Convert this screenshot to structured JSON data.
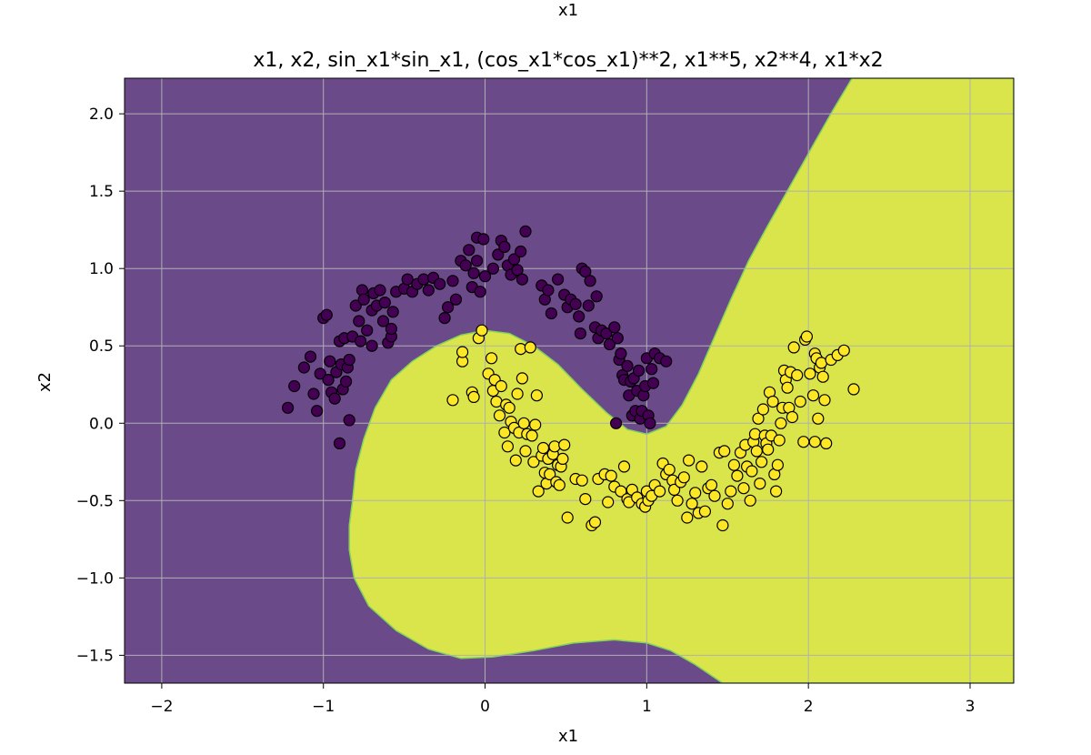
{
  "figure_suptitle": "x1",
  "chart_data": {
    "type": "scatter",
    "title": "x1, x2, sin_x1*sin_x1, (cos_x1*cos_x1)**2, x1**5, x2**4, x1*x2",
    "xlabel": "x1",
    "ylabel": "x2",
    "xlim": [
      -2.23,
      3.27
    ],
    "ylim": [
      -1.68,
      2.23
    ],
    "xticks": [
      -2,
      -1,
      0,
      1,
      2,
      3
    ],
    "yticks": [
      -1.5,
      -1.0,
      -0.5,
      0.0,
      0.5,
      1.0,
      1.5,
      2.0
    ],
    "xtick_labels": [
      "−2",
      "−1",
      "0",
      "1",
      "2",
      "3"
    ],
    "ytick_labels": [
      "−1.5",
      "−1.0",
      "−0.5",
      "0.0",
      "0.5",
      "1.0",
      "1.5",
      "2.0"
    ],
    "grid": true,
    "colors": {
      "class0": "#440154",
      "class1": "#fde725",
      "region0": "#6b4a8a",
      "region1": "#d9e54a",
      "grid": "#b0b0b0",
      "edge": "#000000"
    },
    "decision_regions": {
      "class1_boundary": [
        [
          -0.82,
          -0.5
        ],
        [
          -0.8,
          -0.3
        ],
        [
          -0.75,
          -0.1
        ],
        [
          -0.68,
          0.1
        ],
        [
          -0.58,
          0.28
        ],
        [
          -0.45,
          0.4
        ],
        [
          -0.3,
          0.5
        ],
        [
          -0.15,
          0.57
        ],
        [
          0.0,
          0.6
        ],
        [
          0.15,
          0.58
        ],
        [
          0.3,
          0.5
        ],
        [
          0.45,
          0.38
        ],
        [
          0.6,
          0.22
        ],
        [
          0.75,
          0.07
        ],
        [
          0.88,
          -0.04
        ],
        [
          1.0,
          -0.07
        ],
        [
          1.12,
          -0.02
        ],
        [
          1.22,
          0.12
        ],
        [
          1.32,
          0.32
        ],
        [
          1.42,
          0.56
        ],
        [
          1.52,
          0.8
        ],
        [
          1.63,
          1.05
        ],
        [
          1.75,
          1.28
        ],
        [
          1.88,
          1.52
        ],
        [
          2.02,
          1.78
        ],
        [
          2.15,
          2.02
        ],
        [
          2.27,
          2.23
        ],
        [
          3.27,
          2.23
        ],
        [
          3.27,
          -1.68
        ],
        [
          1.47,
          -1.68
        ],
        [
          1.3,
          -1.56
        ],
        [
          1.15,
          -1.47
        ],
        [
          1.0,
          -1.42
        ],
        [
          0.8,
          -1.4
        ],
        [
          0.55,
          -1.42
        ],
        [
          0.3,
          -1.47
        ],
        [
          0.05,
          -1.51
        ],
        [
          -0.15,
          -1.52
        ],
        [
          -0.35,
          -1.46
        ],
        [
          -0.55,
          -1.34
        ],
        [
          -0.72,
          -1.18
        ],
        [
          -0.81,
          -1.0
        ],
        [
          -0.84,
          -0.82
        ],
        [
          -0.84,
          -0.66
        ]
      ]
    },
    "series": [
      {
        "class": 0,
        "points": [
          [
            -1.22,
            0.1
          ],
          [
            -1.18,
            0.24
          ],
          [
            -1.12,
            0.36
          ],
          [
            -1.08,
            0.43
          ],
          [
            -1.06,
            0.19
          ],
          [
            -1.04,
            0.08
          ],
          [
            -1.02,
            0.32
          ],
          [
            -1.0,
            0.68
          ],
          [
            -0.98,
            0.7
          ],
          [
            -0.97,
            0.28
          ],
          [
            -0.96,
            0.4
          ],
          [
            -0.95,
            0.2
          ],
          [
            -0.93,
            0.16
          ],
          [
            -0.92,
            0.33
          ],
          [
            -0.9,
            0.53
          ],
          [
            -0.9,
            -0.13
          ],
          [
            -0.89,
            0.38
          ],
          [
            -0.88,
            0.22
          ],
          [
            -0.87,
            0.55
          ],
          [
            -0.86,
            0.27
          ],
          [
            -0.85,
            0.36
          ],
          [
            -0.84,
            0.41
          ],
          [
            -0.84,
            0.02
          ],
          [
            -0.82,
            0.56
          ],
          [
            -0.8,
            0.76
          ],
          [
            -0.78,
            0.66
          ],
          [
            -0.77,
            0.53
          ],
          [
            -0.76,
            0.86
          ],
          [
            -0.75,
            0.8
          ],
          [
            -0.73,
            0.6
          ],
          [
            -0.7,
            0.73
          ],
          [
            -0.7,
            0.5
          ],
          [
            -0.69,
            0.84
          ],
          [
            -0.67,
            0.76
          ],
          [
            -0.65,
            0.86
          ],
          [
            -0.63,
            0.66
          ],
          [
            -0.62,
            0.78
          ],
          [
            -0.6,
            0.52
          ],
          [
            -0.58,
            0.56
          ],
          [
            -0.58,
            0.61
          ],
          [
            -0.57,
            0.72
          ],
          [
            -0.55,
            0.85
          ],
          [
            -0.5,
            0.87
          ],
          [
            -0.48,
            0.93
          ],
          [
            -0.45,
            0.85
          ],
          [
            -0.42,
            0.9
          ],
          [
            -0.38,
            0.93
          ],
          [
            -0.35,
            0.86
          ],
          [
            -0.32,
            0.94
          ],
          [
            -0.28,
            0.9
          ],
          [
            -0.25,
            0.68
          ],
          [
            -0.23,
            0.75
          ],
          [
            -0.2,
            0.92
          ],
          [
            -0.18,
            0.8
          ],
          [
            -0.15,
            1.05
          ],
          [
            -0.12,
            1.02
          ],
          [
            -0.1,
            1.12
          ],
          [
            -0.08,
            0.88
          ],
          [
            -0.07,
            0.97
          ],
          [
            -0.05,
            1.2
          ],
          [
            -0.05,
            1.05
          ],
          [
            -0.03,
            0.85
          ],
          [
            -0.01,
            1.19
          ],
          [
            0.0,
            0.95
          ],
          [
            0.05,
            1.0
          ],
          [
            0.08,
            1.09
          ],
          [
            0.1,
            1.18
          ],
          [
            0.12,
            1.14
          ],
          [
            0.14,
            1.02
          ],
          [
            0.16,
            0.96
          ],
          [
            0.18,
            1.06
          ],
          [
            0.2,
            0.99
          ],
          [
            0.22,
            1.11
          ],
          [
            0.23,
            0.93
          ],
          [
            0.25,
            1.24
          ],
          [
            0.35,
            0.89
          ],
          [
            0.37,
            0.8
          ],
          [
            0.39,
            0.86
          ],
          [
            0.41,
            0.71
          ],
          [
            0.45,
            0.93
          ],
          [
            0.49,
            0.83
          ],
          [
            0.51,
            0.75
          ],
          [
            0.53,
            0.8
          ],
          [
            0.56,
            0.77
          ],
          [
            0.58,
            0.69
          ],
          [
            0.59,
            0.58
          ],
          [
            0.6,
            1.0
          ],
          [
            0.62,
            0.98
          ],
          [
            0.64,
            0.76
          ],
          [
            0.65,
            0.92
          ],
          [
            0.68,
            0.62
          ],
          [
            0.69,
            0.82
          ],
          [
            0.7,
            0.55
          ],
          [
            0.72,
            0.6
          ],
          [
            0.75,
            0.58
          ],
          [
            0.77,
            0.51
          ],
          [
            0.8,
            0.62
          ],
          [
            0.82,
            0.55
          ],
          [
            0.83,
            0.41
          ],
          [
            0.84,
            0.45
          ],
          [
            0.85,
            0.31
          ],
          [
            0.86,
            0.28
          ],
          [
            0.88,
            0.37
          ],
          [
            0.89,
            0.18
          ],
          [
            0.9,
            0.27
          ],
          [
            0.91,
            0.05
          ],
          [
            0.92,
            0.29
          ],
          [
            0.93,
            0.08
          ],
          [
            0.94,
            0.21
          ],
          [
            0.95,
            0.34
          ],
          [
            0.96,
            0.03
          ],
          [
            0.97,
            0.08
          ],
          [
            0.98,
            0.18
          ],
          [
            0.99,
            0.24
          ],
          [
            1.0,
            0.42
          ],
          [
            1.01,
            0.05
          ],
          [
            1.02,
            0.0
          ],
          [
            1.03,
            0.35
          ],
          [
            1.04,
            0.26
          ],
          [
            1.05,
            0.45
          ],
          [
            1.08,
            0.42
          ],
          [
            1.12,
            0.4
          ],
          [
            0.81,
            0.0
          ]
        ]
      },
      {
        "class": 1,
        "points": [
          [
            -0.2,
            0.15
          ],
          [
            -0.14,
            0.4
          ],
          [
            -0.14,
            0.46
          ],
          [
            -0.08,
            0.2
          ],
          [
            -0.07,
            0.17
          ],
          [
            -0.04,
            0.55
          ],
          [
            -0.02,
            0.6
          ],
          [
            0.02,
            0.32
          ],
          [
            0.04,
            0.42
          ],
          [
            0.05,
            0.21
          ],
          [
            0.06,
            0.28
          ],
          [
            0.07,
            0.14
          ],
          [
            0.09,
            0.05
          ],
          [
            0.1,
            0.24
          ],
          [
            0.12,
            -0.06
          ],
          [
            0.13,
            0.12
          ],
          [
            0.14,
            -0.15
          ],
          [
            0.15,
            0.1
          ],
          [
            0.16,
            0.01
          ],
          [
            0.18,
            -0.03
          ],
          [
            0.19,
            -0.24
          ],
          [
            0.2,
            0.19
          ],
          [
            0.21,
            -0.06
          ],
          [
            0.22,
            0.48
          ],
          [
            0.23,
            0.29
          ],
          [
            0.24,
            0.0
          ],
          [
            0.25,
            -0.18
          ],
          [
            0.26,
            -0.07
          ],
          [
            0.28,
            0.49
          ],
          [
            0.29,
            -0.08
          ],
          [
            0.3,
            -0.25
          ],
          [
            0.31,
            -0.01
          ],
          [
            0.32,
            0.18
          ],
          [
            0.33,
            -0.44
          ],
          [
            0.35,
            -0.21
          ],
          [
            0.36,
            -0.16
          ],
          [
            0.37,
            -0.32
          ],
          [
            0.38,
            -0.39
          ],
          [
            0.39,
            -0.23
          ],
          [
            0.4,
            -0.33
          ],
          [
            0.42,
            -0.2
          ],
          [
            0.43,
            -0.15
          ],
          [
            0.44,
            -0.38
          ],
          [
            0.45,
            -0.27
          ],
          [
            0.46,
            -0.4
          ],
          [
            0.47,
            -0.28
          ],
          [
            0.48,
            -0.23
          ],
          [
            0.49,
            -0.14
          ],
          [
            0.51,
            -0.61
          ],
          [
            0.56,
            -0.36
          ],
          [
            0.6,
            -0.37
          ],
          [
            0.62,
            -0.49
          ],
          [
            0.66,
            -0.66
          ],
          [
            0.68,
            -0.64
          ],
          [
            0.7,
            -0.36
          ],
          [
            0.74,
            -0.33
          ],
          [
            0.76,
            -0.51
          ],
          [
            0.78,
            -0.34
          ],
          [
            0.8,
            -0.41
          ],
          [
            0.84,
            -0.44
          ],
          [
            0.86,
            -0.28
          ],
          [
            0.88,
            -0.49
          ],
          [
            0.89,
            -0.51
          ],
          [
            0.91,
            -0.43
          ],
          [
            0.94,
            -0.48
          ],
          [
            0.97,
            -0.52
          ],
          [
            0.99,
            -0.54
          ],
          [
            1.0,
            -0.44
          ],
          [
            1.01,
            -0.5
          ],
          [
            1.03,
            -0.47
          ],
          [
            1.05,
            -0.4
          ],
          [
            1.08,
            -0.44
          ],
          [
            1.1,
            -0.26
          ],
          [
            1.12,
            -0.33
          ],
          [
            1.14,
            -0.3
          ],
          [
            1.16,
            -0.37
          ],
          [
            1.17,
            -0.43
          ],
          [
            1.19,
            -0.5
          ],
          [
            1.21,
            -0.38
          ],
          [
            1.23,
            -0.35
          ],
          [
            1.25,
            -0.61
          ],
          [
            1.26,
            -0.24
          ],
          [
            1.28,
            -0.52
          ],
          [
            1.3,
            -0.45
          ],
          [
            1.32,
            -0.58
          ],
          [
            1.34,
            -0.28
          ],
          [
            1.36,
            -0.57
          ],
          [
            1.38,
            -0.42
          ],
          [
            1.4,
            -0.4
          ],
          [
            1.42,
            -0.47
          ],
          [
            1.45,
            -0.19
          ],
          [
            1.47,
            -0.66
          ],
          [
            1.48,
            -0.18
          ],
          [
            1.5,
            -0.52
          ],
          [
            1.52,
            -0.44
          ],
          [
            1.54,
            -0.27
          ],
          [
            1.56,
            -0.34
          ],
          [
            1.58,
            -0.19
          ],
          [
            1.6,
            -0.42
          ],
          [
            1.61,
            -0.14
          ],
          [
            1.62,
            -0.28
          ],
          [
            1.64,
            -0.5
          ],
          [
            1.65,
            -0.31
          ],
          [
            1.66,
            -0.12
          ],
          [
            1.67,
            -0.07
          ],
          [
            1.68,
            -0.18
          ],
          [
            1.69,
            0.03
          ],
          [
            1.7,
            -0.39
          ],
          [
            1.71,
            -0.25
          ],
          [
            1.72,
            0.09
          ],
          [
            1.73,
            -0.08
          ],
          [
            1.74,
            -0.13
          ],
          [
            1.75,
            -0.17
          ],
          [
            1.76,
            0.2
          ],
          [
            1.77,
            -0.08
          ],
          [
            1.78,
            0.14
          ],
          [
            1.79,
            -0.33
          ],
          [
            1.8,
            -0.44
          ],
          [
            1.81,
            -0.27
          ],
          [
            1.82,
            -0.11
          ],
          [
            1.83,
            0.0
          ],
          [
            1.84,
            0.1
          ],
          [
            1.85,
            0.34
          ],
          [
            1.86,
            0.28
          ],
          [
            1.87,
            0.23
          ],
          [
            1.88,
            0.1
          ],
          [
            1.89,
            0.33
          ],
          [
            1.9,
            0.04
          ],
          [
            1.91,
            0.49
          ],
          [
            1.93,
            0.31
          ],
          [
            1.95,
            0.14
          ],
          [
            1.97,
            -0.12
          ],
          [
            1.98,
            0.54
          ],
          [
            1.99,
            0.56
          ],
          [
            2.01,
            0.32
          ],
          [
            2.03,
            0.18
          ],
          [
            2.04,
            0.45
          ],
          [
            2.05,
            0.42
          ],
          [
            2.06,
            0.03
          ],
          [
            2.07,
            0.36
          ],
          [
            2.08,
            0.39
          ],
          [
            2.09,
            0.3
          ],
          [
            2.1,
            0.15
          ],
          [
            2.11,
            -0.13
          ],
          [
            2.14,
            0.41
          ],
          [
            2.18,
            0.44
          ],
          [
            2.22,
            0.47
          ],
          [
            2.28,
            0.22
          ],
          [
            2.04,
            -0.12
          ]
        ]
      }
    ]
  }
}
